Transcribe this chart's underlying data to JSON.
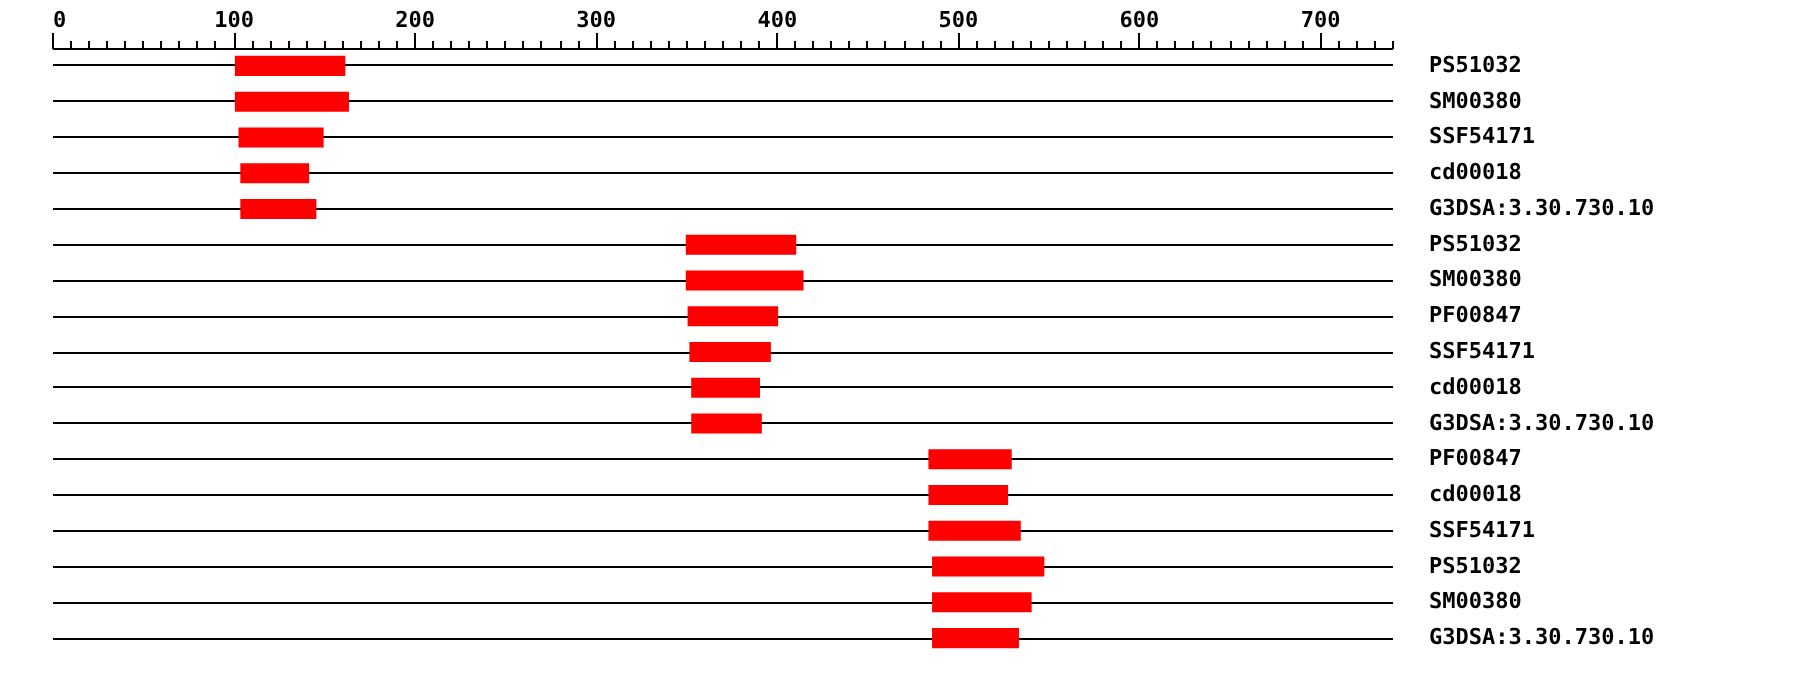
{
  "chart_data": {
    "type": "bar",
    "orientation": "horizontal",
    "categories": [
      "PS51032",
      "SM00380",
      "SSF54171",
      "cd00018",
      "G3DSA:3.30.730.10",
      "PS51032",
      "SM00380",
      "PF00847",
      "SSF54171",
      "cd00018",
      "G3DSA:3.30.730.10",
      "PF00847",
      "cd00018",
      "SSF54171",
      "PS51032",
      "SM00380",
      "G3DSA:3.30.730.10"
    ],
    "base": [
      101,
      101,
      103,
      104,
      104,
      350,
      350,
      351,
      352,
      353,
      353,
      484,
      484,
      484,
      486,
      486,
      486
    ],
    "values": [
      61,
      63,
      47,
      38,
      42,
      61,
      65,
      50,
      45,
      38,
      39,
      46,
      44,
      51,
      62,
      55,
      48
    ],
    "color": "#ff0000",
    "xlim": [
      0,
      740
    ],
    "xticks": [
      0,
      {
        "value": 10,
        "label": null
      },
      {
        "value": 20,
        "label": null
      },
      {
        "value": 30,
        "label": null
      },
      {
        "value": 40,
        "label": null
      },
      {
        "value": 50,
        "label": null
      },
      {
        "value": 60,
        "label": null
      },
      {
        "value": 70,
        "label": null
      },
      {
        "value": 80,
        "label": null
      },
      {
        "value": 90,
        "label": null
      },
      100,
      {
        "value": 110,
        "label": null
      },
      {
        "value": 120,
        "label": null
      },
      {
        "value": 130,
        "label": null
      },
      {
        "value": 140,
        "label": null
      },
      {
        "value": 150,
        "label": null
      },
      {
        "value": 160,
        "label": null
      },
      {
        "value": 170,
        "label": null
      },
      {
        "value": 180,
        "label": null
      },
      {
        "value": 190,
        "label": null
      },
      200,
      {
        "value": 210,
        "label": null
      },
      {
        "value": 220,
        "label": null
      },
      {
        "value": 230,
        "label": null
      },
      {
        "value": 240,
        "label": null
      },
      {
        "value": 250,
        "label": null
      },
      {
        "value": 260,
        "label": null
      },
      {
        "value": 270,
        "label": null
      },
      {
        "value": 280,
        "label": null
      },
      {
        "value": 290,
        "label": null
      },
      300,
      {
        "value": 310,
        "label": null
      },
      {
        "value": 320,
        "label": null
      },
      {
        "value": 330,
        "label": null
      },
      {
        "value": 340,
        "label": null
      },
      {
        "value": 350,
        "label": null
      },
      {
        "value": 360,
        "label": null
      },
      {
        "value": 370,
        "label": null
      },
      {
        "value": 380,
        "label": null
      },
      {
        "value": 390,
        "label": null
      },
      400,
      {
        "value": 410,
        "label": null
      },
      {
        "value": 420,
        "label": null
      },
      {
        "value": 430,
        "label": null
      },
      {
        "value": 440,
        "label": null
      },
      {
        "value": 450,
        "label": null
      },
      {
        "value": 460,
        "label": null
      },
      {
        "value": 470,
        "label": null
      },
      {
        "value": 480,
        "label": null
      },
      {
        "value": 490,
        "label": null
      },
      500,
      {
        "value": 510,
        "label": null
      },
      {
        "value": 520,
        "label": null
      },
      {
        "value": 530,
        "label": null
      },
      {
        "value": 540,
        "label": null
      },
      {
        "value": 550,
        "label": null
      },
      {
        "value": 560,
        "label": null
      },
      {
        "value": 570,
        "label": null
      },
      {
        "value": 580,
        "label": null
      },
      {
        "value": 590,
        "label": null
      },
      600,
      {
        "value": 610,
        "label": null
      },
      {
        "value": 620,
        "label": null
      },
      {
        "value": 630,
        "label": null
      },
      {
        "value": 640,
        "label": null
      },
      {
        "value": 650,
        "label": null
      },
      {
        "value": 660,
        "label": null
      },
      {
        "value": 670,
        "label": null
      },
      {
        "value": 680,
        "label": null
      },
      {
        "value": 690,
        "label": null
      },
      700,
      {
        "value": 710,
        "label": null
      },
      {
        "value": 720,
        "label": null
      },
      {
        "value": 730,
        "label": null
      },
      {
        "value": 740,
        "label": null
      }
    ],
    "grid": "y"
  }
}
